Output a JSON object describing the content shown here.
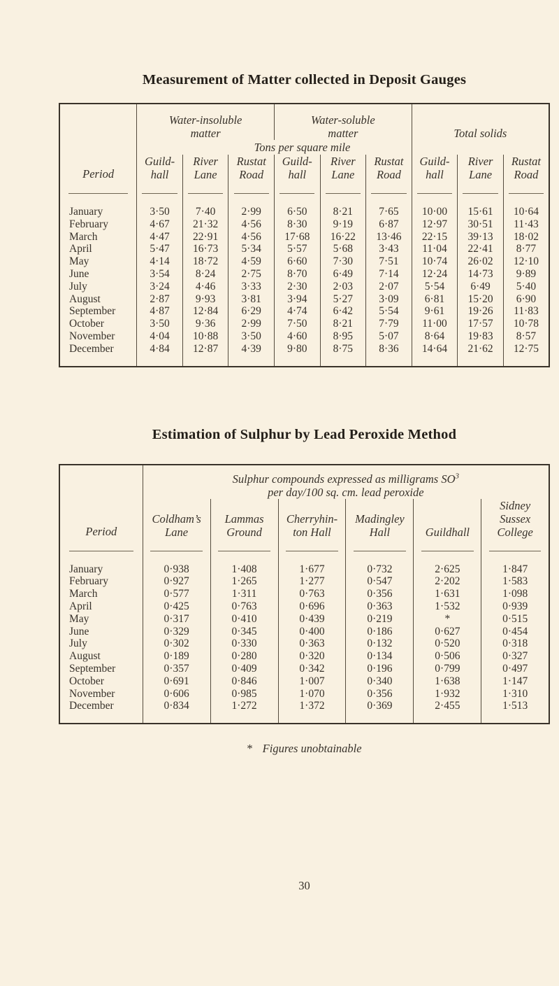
{
  "table1": {
    "title": "Measurement of Matter collected in Deposit Gauges",
    "period_label": "Period",
    "units_label": "Tons per square mile",
    "groups": [
      {
        "line1": "Water-insoluble",
        "line2": "matter"
      },
      {
        "line1": "Water-soluble",
        "line2": "matter"
      },
      {
        "line1": "Total solids",
        "line2": ""
      }
    ],
    "columns": [
      {
        "l1": "Guild-",
        "l2": "hall"
      },
      {
        "l1": "River",
        "l2": "Lane"
      },
      {
        "l1": "Rustat",
        "l2": "Road"
      },
      {
        "l1": "Guild-",
        "l2": "hall"
      },
      {
        "l1": "River",
        "l2": "Lane"
      },
      {
        "l1": "Rustat",
        "l2": "Road"
      },
      {
        "l1": "Guild-",
        "l2": "hall"
      },
      {
        "l1": "River",
        "l2": "Lane"
      },
      {
        "l1": "Rustat",
        "l2": "Road"
      }
    ],
    "rows": [
      {
        "period": "January",
        "values": [
          "3·50",
          "7·40",
          "2·99",
          "6·50",
          "8·21",
          "7·65",
          "10·00",
          "15·61",
          "10·64"
        ]
      },
      {
        "period": "February",
        "values": [
          "4·67",
          "21·32",
          "4·56",
          "8·30",
          "9·19",
          "6·87",
          "12·97",
          "30·51",
          "11·43"
        ]
      },
      {
        "period": "March",
        "values": [
          "4·47",
          "22·91",
          "4·56",
          "17·68",
          "16·22",
          "13·46",
          "22·15",
          "39·13",
          "18·02"
        ]
      },
      {
        "period": "April",
        "values": [
          "5·47",
          "16·73",
          "5·34",
          "5·57",
          "5·68",
          "3·43",
          "11·04",
          "22·41",
          "8·77"
        ]
      },
      {
        "period": "May",
        "values": [
          "4·14",
          "18·72",
          "4·59",
          "6·60",
          "7·30",
          "7·51",
          "10·74",
          "26·02",
          "12·10"
        ]
      },
      {
        "period": "June",
        "values": [
          "3·54",
          "8·24",
          "2·75",
          "8·70",
          "6·49",
          "7·14",
          "12·24",
          "14·73",
          "9·89"
        ]
      },
      {
        "period": "July",
        "values": [
          "3·24",
          "4·46",
          "3·33",
          "2·30",
          "2·03",
          "2·07",
          "5·54",
          "6·49",
          "5·40"
        ]
      },
      {
        "period": "August",
        "values": [
          "2·87",
          "9·93",
          "3·81",
          "3·94",
          "5·27",
          "3·09",
          "6·81",
          "15·20",
          "6·90"
        ]
      },
      {
        "period": "September",
        "values": [
          "4·87",
          "12·84",
          "6·29",
          "4·74",
          "6·42",
          "5·54",
          "9·61",
          "19·26",
          "11·83"
        ]
      },
      {
        "period": "October",
        "values": [
          "3·50",
          "9·36",
          "2·99",
          "7·50",
          "8·21",
          "7·79",
          "11·00",
          "17·57",
          "10·78"
        ]
      },
      {
        "period": "November",
        "values": [
          "4·04",
          "10·88",
          "3·50",
          "4·60",
          "8·95",
          "5·07",
          "8·64",
          "19·83",
          "8·57"
        ]
      },
      {
        "period": "December",
        "values": [
          "4·84",
          "12·87",
          "4·39",
          "9·80",
          "8·75",
          "8·36",
          "14·64",
          "21·62",
          "12·75"
        ]
      }
    ]
  },
  "table2": {
    "title": "Estimation of Sulphur by Lead Peroxide Method",
    "period_label": "Period",
    "header_line1": "Sulphur compounds expressed as milligrams SO",
    "header_sup": "3",
    "header_line2": "per day/100 sq. cm. lead peroxide",
    "columns": [
      {
        "l1": "Coldham’s",
        "l2": "Lane",
        "l3": ""
      },
      {
        "l1": "Lammas",
        "l2": "Ground",
        "l3": ""
      },
      {
        "l1": "Cherryhin-",
        "l2": "ton Hall",
        "l3": ""
      },
      {
        "l1": "Madingley",
        "l2": "Hall",
        "l3": ""
      },
      {
        "l1": "Guildhall",
        "l2": "",
        "l3": ""
      },
      {
        "l1": "Sidney",
        "l2": "Sussex",
        "l3": "College"
      }
    ],
    "rows": [
      {
        "period": "January",
        "values": [
          "0·938",
          "1·408",
          "1·677",
          "0·732",
          "2·625",
          "1·847"
        ]
      },
      {
        "period": "February",
        "values": [
          "0·927",
          "1·265",
          "1·277",
          "0·547",
          "2·202",
          "1·583"
        ]
      },
      {
        "period": "March",
        "values": [
          "0·577",
          "1·311",
          "0·763",
          "0·356",
          "1·631",
          "1·098"
        ]
      },
      {
        "period": "April",
        "values": [
          "0·425",
          "0·763",
          "0·696",
          "0·363",
          "1·532",
          "0·939"
        ]
      },
      {
        "period": "May",
        "values": [
          "0·317",
          "0·410",
          "0·439",
          "0·219",
          "*",
          "0·515"
        ]
      },
      {
        "period": "June",
        "values": [
          "0·329",
          "0·345",
          "0·400",
          "0·186",
          "0·627",
          "0·454"
        ]
      },
      {
        "period": "July",
        "values": [
          "0·302",
          "0·330",
          "0·363",
          "0·132",
          "0·520",
          "0·318"
        ]
      },
      {
        "period": "August",
        "values": [
          "0·189",
          "0·280",
          "0·320",
          "0·134",
          "0·506",
          "0·327"
        ]
      },
      {
        "period": "September",
        "values": [
          "0·357",
          "0·409",
          "0·342",
          "0·196",
          "0·799",
          "0·497"
        ]
      },
      {
        "period": "October",
        "values": [
          "0·691",
          "0·846",
          "1·007",
          "0·340",
          "1·638",
          "1·147"
        ]
      },
      {
        "period": "November",
        "values": [
          "0·606",
          "0·985",
          "1·070",
          "0·356",
          "1·932",
          "1·310"
        ]
      },
      {
        "period": "December",
        "values": [
          "0·834",
          "1·272",
          "1·372",
          "0·369",
          "2·455",
          "1·513"
        ]
      }
    ]
  },
  "footnote": {
    "symbol": "*",
    "text": "Figures unobtainable"
  },
  "page_number": "30"
}
